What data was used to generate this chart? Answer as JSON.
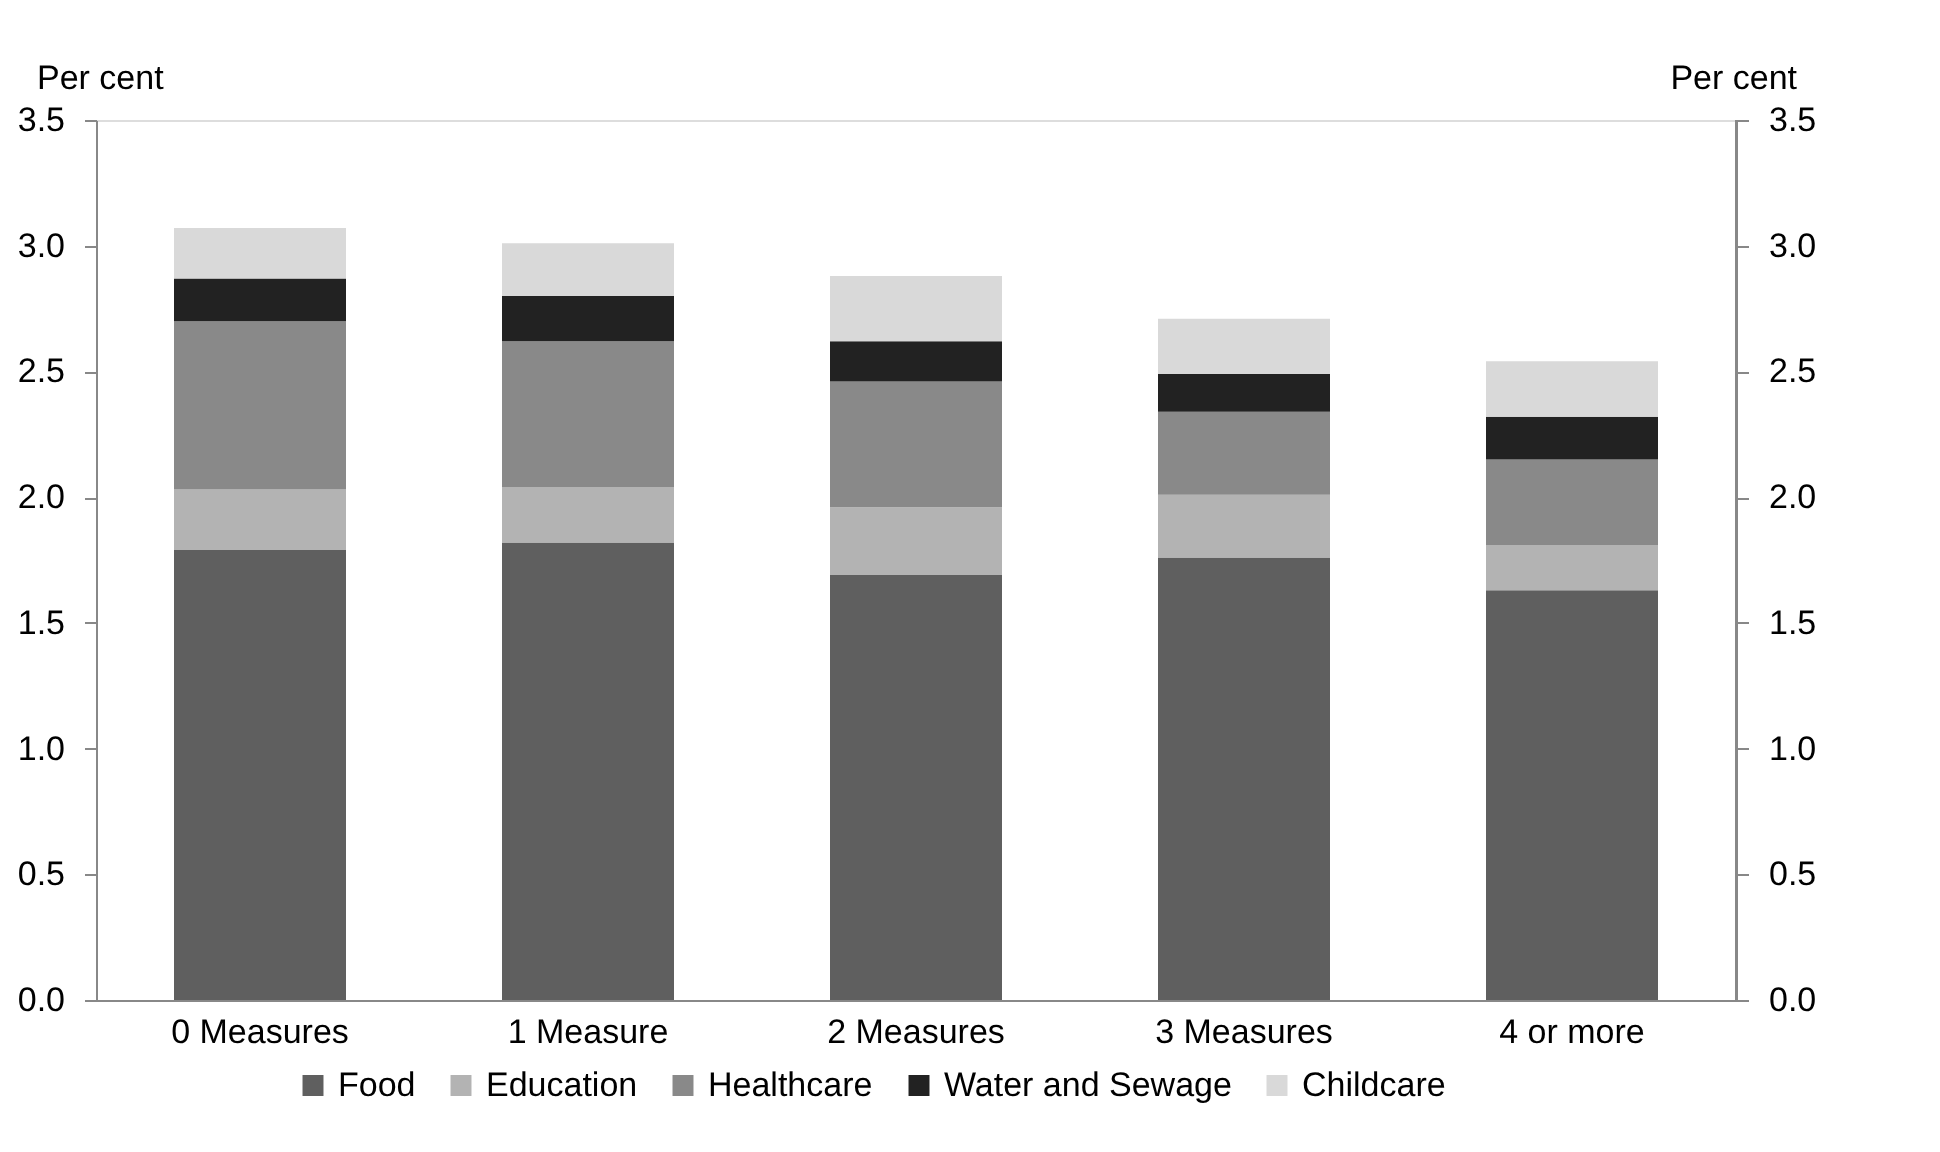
{
  "chart_data": {
    "type": "bar",
    "stacked": true,
    "categories": [
      "0 Measures",
      "1 Measure",
      "2 Measures",
      "3 Measures",
      "4 or more"
    ],
    "series": [
      {
        "name": "Food",
        "color": "#5f5f5f",
        "values": [
          1.79,
          1.82,
          1.69,
          1.76,
          1.63
        ]
      },
      {
        "name": "Education",
        "color": "#b3b3b3",
        "values": [
          0.24,
          0.22,
          0.27,
          0.25,
          0.18
        ]
      },
      {
        "name": "Healthcare",
        "color": "#898989",
        "values": [
          0.67,
          0.58,
          0.5,
          0.33,
          0.34
        ]
      },
      {
        "name": "Water and Sewage",
        "color": "#222222",
        "values": [
          0.17,
          0.18,
          0.16,
          0.15,
          0.17
        ]
      },
      {
        "name": "Childcare",
        "color": "#d9d9d9",
        "values": [
          0.2,
          0.21,
          0.26,
          0.22,
          0.22
        ]
      }
    ],
    "ylabel": "Per cent",
    "y2label": "Per cent",
    "ylim": [
      0,
      3.5
    ],
    "yticks": [
      {
        "value": 0,
        "label": "0.0"
      },
      {
        "value": 0.5,
        "label": "0.5"
      },
      {
        "value": 1,
        "label": "1.0"
      },
      {
        "value": 1.5,
        "label": "1.5"
      },
      {
        "value": 2,
        "label": "2.0"
      },
      {
        "value": 2.5,
        "label": "2.5"
      },
      {
        "value": 3,
        "label": "3.0"
      },
      {
        "value": 3.5,
        "label": "3.5"
      }
    ],
    "y2lim": [
      0,
      3.5
    ],
    "y2ticks": [
      {
        "value": 0,
        "label": "0.0"
      },
      {
        "value": 0.5,
        "label": "0.5"
      },
      {
        "value": 1,
        "label": "1.0"
      },
      {
        "value": 1.5,
        "label": "1.5"
      },
      {
        "value": 2,
        "label": "2.0"
      },
      {
        "value": 2.5,
        "label": "2.5"
      },
      {
        "value": 3,
        "label": "3.0"
      },
      {
        "value": 3.5,
        "label": "3.5"
      }
    ],
    "legend": "bottom",
    "grid": false
  }
}
